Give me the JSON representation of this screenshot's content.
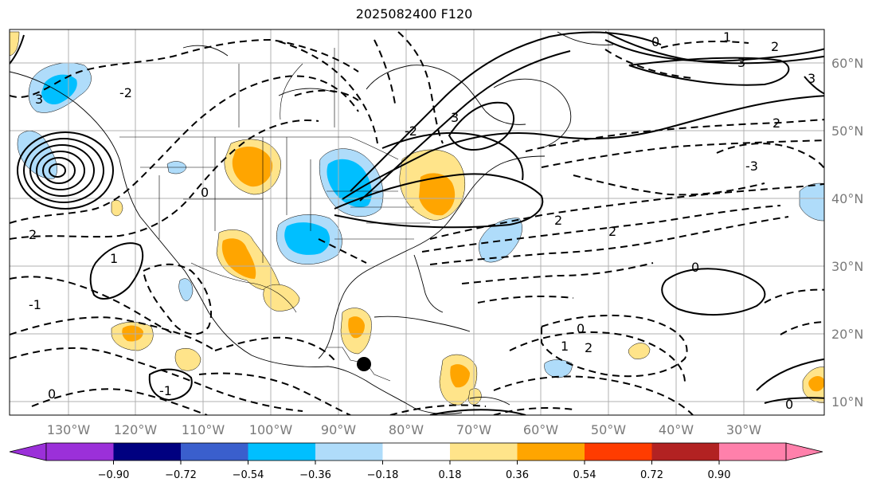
{
  "title": "2025082400 F120",
  "map": {
    "lon_labels": [
      "130°W",
      "120°W",
      "110°W",
      "100°W",
      "90°W",
      "80°W",
      "70°W",
      "60°W",
      "50°W",
      "40°W",
      "30°W"
    ],
    "lat_labels": [
      "60°N",
      "50°N",
      "40°N",
      "30°N",
      "20°N",
      "10°N"
    ]
  },
  "colorbar": {
    "ticks": [
      "−0.90",
      "−0.72",
      "−0.54",
      "−0.36",
      "−0.18",
      "0.18",
      "0.36",
      "0.54",
      "0.72",
      "0.90"
    ],
    "colors": {
      "under": "#9b30d9",
      "bins": [
        "#000080",
        "#3a5fcd",
        "#00bfff",
        "#afdcfa",
        "#ffffff",
        "#ffe48a",
        "#ffa500",
        "#ff3c00",
        "#b22222",
        "#ff80ab"
      ]
    }
  },
  "contour_labels": [
    "0",
    "0",
    "0",
    "0",
    "0",
    "0",
    "1",
    "1",
    "1",
    "2",
    "2",
    "2",
    "2",
    "2",
    "2",
    "3",
    "3",
    "3",
    "3",
    "-1",
    "-1",
    "-2",
    "-2",
    "-3"
  ],
  "marker": {
    "type": "filled-circle",
    "color": "#000000"
  }
}
